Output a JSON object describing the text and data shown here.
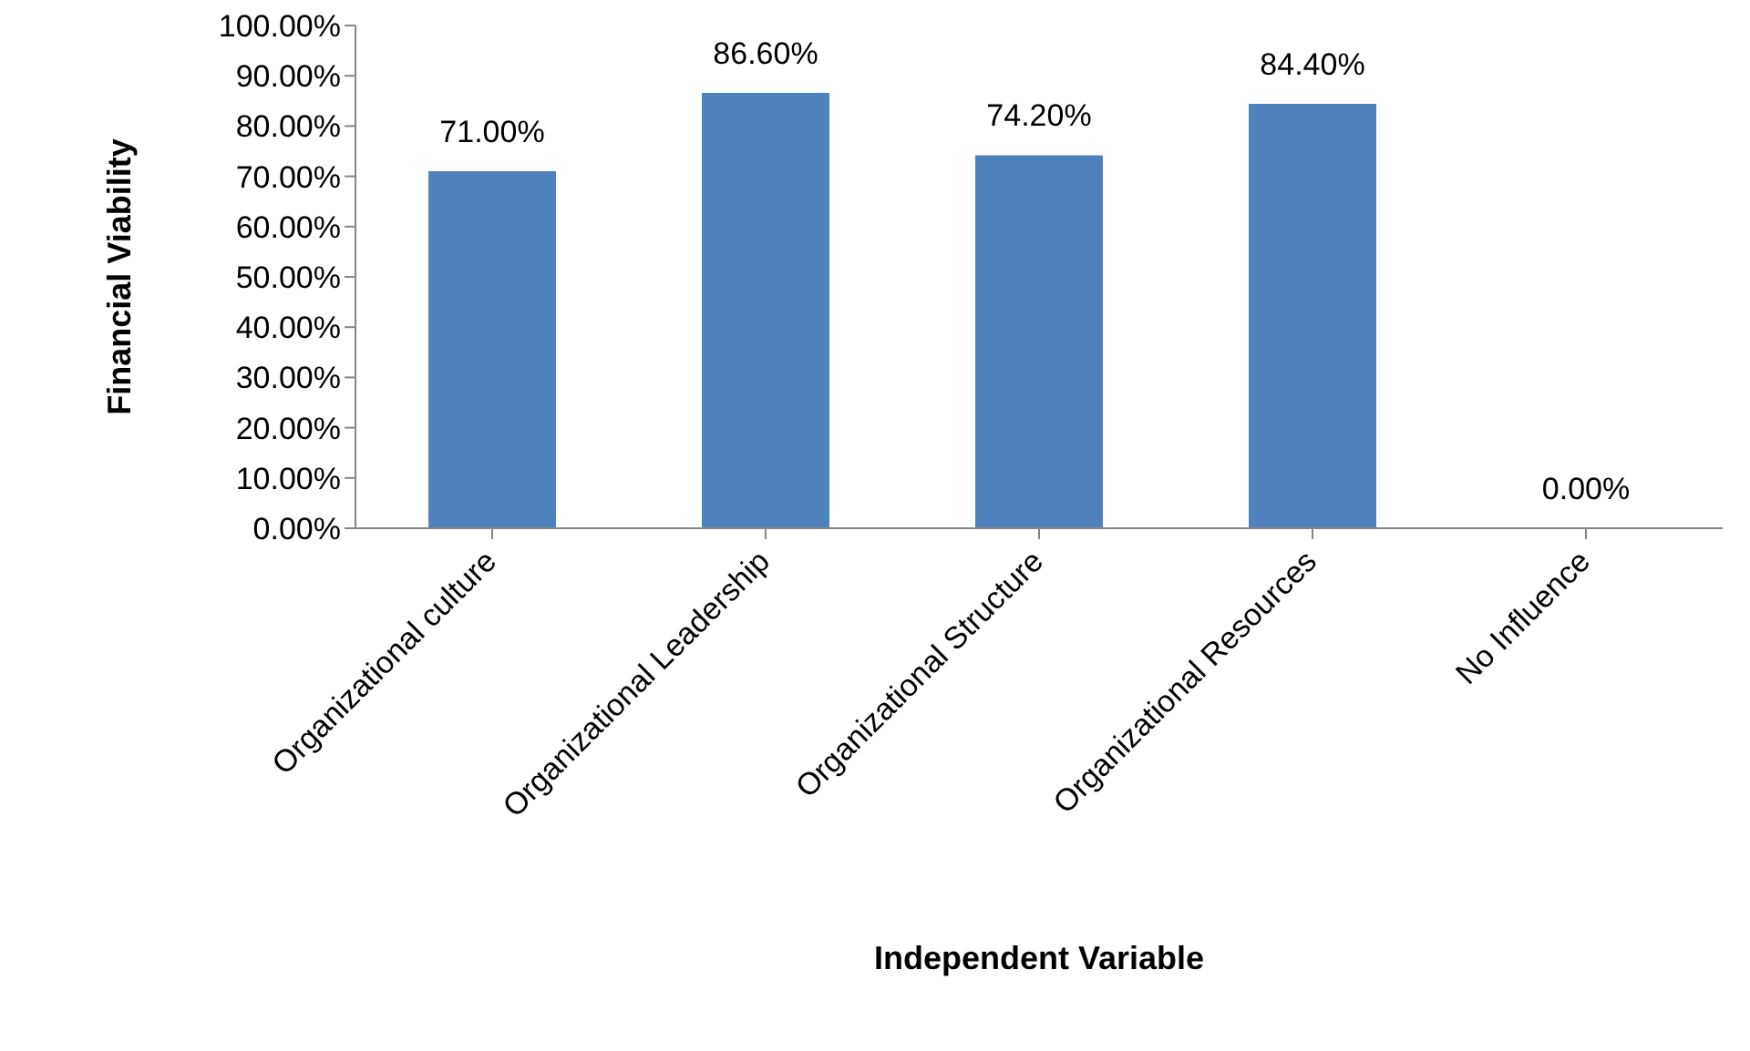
{
  "chart_data": {
    "type": "bar",
    "xlabel": "Independent Variable",
    "ylabel": "Financial Viability",
    "categories": [
      "Organizational culture",
      "Organizational Leadership",
      "Organizational Structure",
      "Organizational Resources",
      "No Influence"
    ],
    "values": [
      71.0,
      86.6,
      74.2,
      84.4,
      0
    ],
    "value_labels": [
      "71.00%",
      "86.60%",
      "74.20%",
      "84.40%",
      "0.00%"
    ],
    "color": "#4f81bd",
    "ylim": [
      0,
      100
    ],
    "yticks": [
      {
        "value": 0,
        "label": "0.00%"
      },
      {
        "value": 10,
        "label": "10.00%"
      },
      {
        "value": 20,
        "label": "20.00%"
      },
      {
        "value": 30,
        "label": "30.00%"
      },
      {
        "value": 40,
        "label": "40.00%"
      },
      {
        "value": 50,
        "label": "50.00%"
      },
      {
        "value": 60,
        "label": "60.00%"
      },
      {
        "value": 70,
        "label": "70.00%"
      },
      {
        "value": 80,
        "label": "80.00%"
      },
      {
        "value": 90,
        "label": "90.00%"
      },
      {
        "value": 100,
        "label": "100.00%"
      }
    ],
    "grid": false,
    "legend": false
  }
}
